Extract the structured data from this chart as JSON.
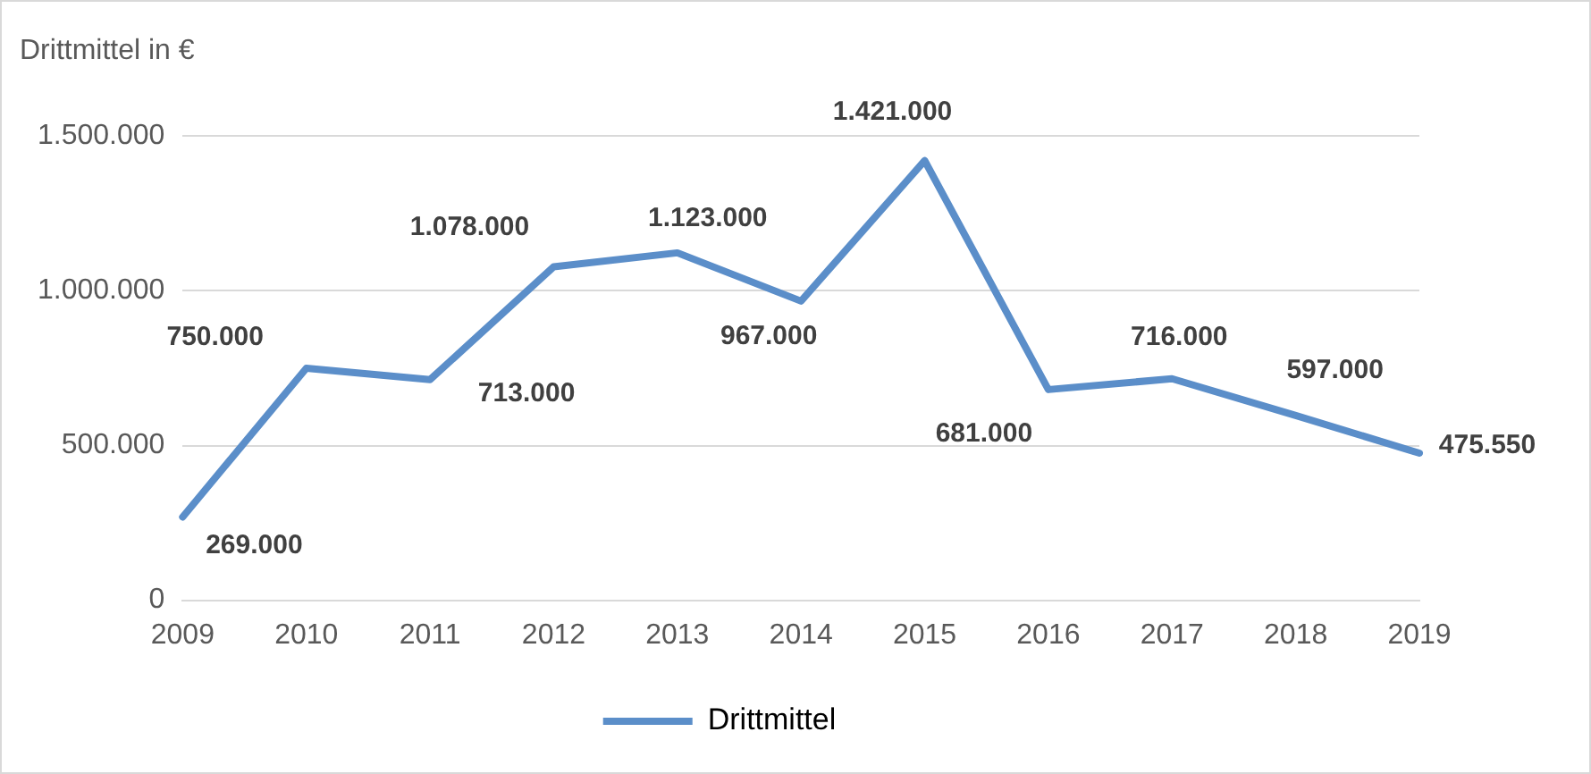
{
  "chart_data": {
    "type": "line",
    "ylabel": "Drittmittel in €",
    "categories": [
      "2009",
      "2010",
      "2011",
      "2012",
      "2013",
      "2014",
      "2015",
      "2016",
      "2017",
      "2018",
      "2019"
    ],
    "series": [
      {
        "name": "Drittmittel",
        "color": "#5b8ec9",
        "values": [
          269000,
          750000,
          713000,
          1078000,
          1123000,
          967000,
          1421000,
          681000,
          716000,
          597000,
          475550
        ],
        "value_labels": [
          "269.000",
          "750.000",
          "713.000",
          "1.078.000",
          "1.123.000",
          "967.000",
          "1.421.000",
          "681.000",
          "716.000",
          "597.000",
          "475.550"
        ]
      }
    ],
    "ylim": [
      0,
      1500000
    ],
    "yticks": [
      0,
      {
        "value": 500000,
        "label": "500.000"
      },
      {
        "value": 1000000,
        "label": "1.000.000"
      },
      {
        "value": 1500000,
        "label": "1.500.000"
      }
    ],
    "grid": "y",
    "legend": "bottom",
    "marker": "none",
    "line_style": "solid"
  }
}
